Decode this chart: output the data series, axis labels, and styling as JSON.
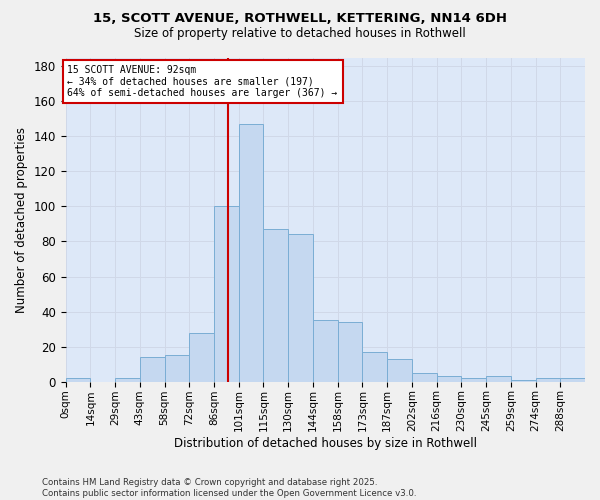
{
  "title1": "15, SCOTT AVENUE, ROTHWELL, KETTERING, NN14 6DH",
  "title2": "Size of property relative to detached houses in Rothwell",
  "xlabel": "Distribution of detached houses by size in Rothwell",
  "ylabel": "Number of detached properties",
  "bin_labels": [
    "0sqm",
    "14sqm",
    "29sqm",
    "43sqm",
    "58sqm",
    "72sqm",
    "86sqm",
    "101sqm",
    "115sqm",
    "130sqm",
    "144sqm",
    "158sqm",
    "173sqm",
    "187sqm",
    "202sqm",
    "216sqm",
    "230sqm",
    "245sqm",
    "259sqm",
    "274sqm",
    "288sqm"
  ],
  "bar_values": [
    2,
    0,
    2,
    14,
    15,
    28,
    100,
    147,
    87,
    84,
    35,
    34,
    17,
    13,
    5,
    3,
    2,
    3,
    1,
    2,
    2
  ],
  "bar_color": "#c5d8f0",
  "bar_edge_color": "#7aadd4",
  "grid_color": "#d0d8e8",
  "background_color": "#dde8f8",
  "fig_background_color": "#f0f0f0",
  "property_line_x": 92,
  "property_label": "15 SCOTT AVENUE: 92sqm",
  "annotation_line1": "← 34% of detached houses are smaller (197)",
  "annotation_line2": "64% of semi-detached houses are larger (367) →",
  "annotation_box_color": "#ffffff",
  "annotation_border_color": "#cc0000",
  "vline_color": "#cc0000",
  "footer_line1": "Contains HM Land Registry data © Crown copyright and database right 2025.",
  "footer_line2": "Contains public sector information licensed under the Open Government Licence v3.0.",
  "ylim": [
    0,
    185
  ],
  "yticks": [
    0,
    20,
    40,
    60,
    80,
    100,
    120,
    140,
    160,
    180
  ],
  "bin_width": 14,
  "n_bins": 21
}
